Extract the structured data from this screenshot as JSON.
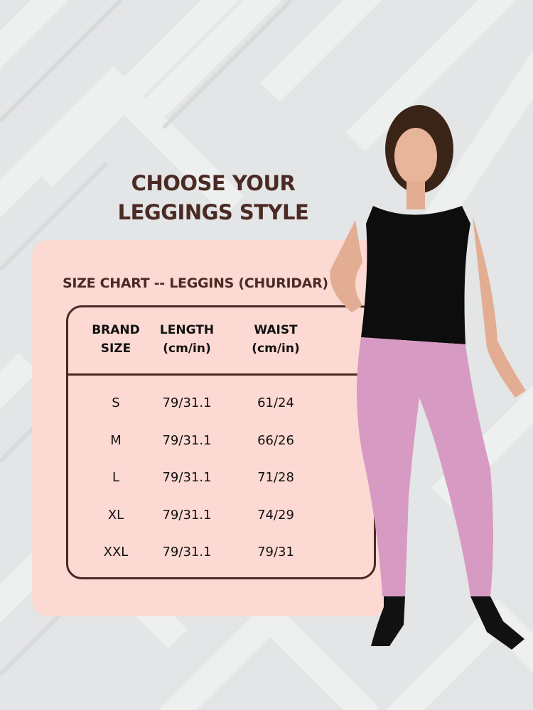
{
  "title": {
    "line1": "CHOOSE YOUR",
    "line2": "LEGGINGS  STYLE"
  },
  "subtitle": "SIZE CHART -- LEGGINS (CHURIDAR)",
  "table": {
    "headers": [
      [
        "BRAND",
        "SIZE"
      ],
      [
        "LENGTH",
        "(cm/in)"
      ],
      [
        "WAIST",
        "(cm/in)"
      ]
    ],
    "rows": [
      [
        "S",
        "79/31.1",
        "61/24"
      ],
      [
        "M",
        "79/31.1",
        "66/26"
      ],
      [
        "L",
        "79/31.1",
        "71/28"
      ],
      [
        "XL",
        "79/31.1",
        "74/29"
      ],
      [
        "XXL",
        "79/31.1",
        "79/31"
      ]
    ]
  },
  "colors": {
    "accent": "#4b2a23",
    "panel": "#fdd9d3",
    "background": "#e3e5e6",
    "top": "#0d0d0d",
    "leggings": "#d79bc3"
  }
}
